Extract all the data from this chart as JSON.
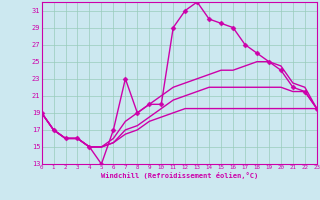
{
  "xlabel": "Windchill (Refroidissement éolien,°C)",
  "bg_color": "#cce8f0",
  "grid_color": "#99ccbb",
  "line_color": "#cc00aa",
  "spine_color": "#cc00aa",
  "xmin": 0,
  "xmax": 23,
  "ymin": 13,
  "ymax": 32,
  "yticks": [
    13,
    15,
    17,
    19,
    21,
    23,
    25,
    27,
    29,
    31
  ],
  "xticks": [
    0,
    1,
    2,
    3,
    4,
    5,
    6,
    7,
    8,
    9,
    10,
    11,
    12,
    13,
    14,
    15,
    16,
    17,
    18,
    19,
    20,
    21,
    22,
    23
  ],
  "series": [
    {
      "x": [
        0,
        1,
        2,
        3,
        4,
        5,
        6,
        7,
        8,
        9,
        10,
        11,
        12,
        13,
        14,
        15,
        16,
        17,
        18,
        19,
        20,
        21,
        22,
        23
      ],
      "y": [
        19,
        17,
        16,
        16,
        15,
        13,
        17,
        23,
        19,
        20,
        20,
        29,
        31,
        32,
        30,
        29.5,
        29,
        27,
        26,
        25,
        24,
        22,
        21.5,
        19.5
      ],
      "marker": "D",
      "markersize": 2.5,
      "linewidth": 1.0
    },
    {
      "x": [
        0,
        1,
        2,
        3,
        4,
        5,
        6,
        7,
        8,
        9,
        10,
        11,
        12,
        13,
        14,
        15,
        16,
        17,
        18,
        19,
        20,
        21,
        22,
        23
      ],
      "y": [
        19,
        17,
        16,
        16,
        15,
        15,
        16,
        18,
        19,
        20,
        21,
        22,
        22.5,
        23,
        23.5,
        24,
        24,
        24.5,
        25,
        25,
        24.5,
        22.5,
        22,
        19.5
      ],
      "marker": null,
      "markersize": 0,
      "linewidth": 1.0
    },
    {
      "x": [
        0,
        1,
        2,
        3,
        4,
        5,
        6,
        7,
        8,
        9,
        10,
        11,
        12,
        13,
        14,
        15,
        16,
        17,
        18,
        19,
        20,
        21,
        22,
        23
      ],
      "y": [
        19,
        17,
        16,
        16,
        15,
        15,
        15.5,
        17,
        17.5,
        18.5,
        19.5,
        20.5,
        21,
        21.5,
        22,
        22,
        22,
        22,
        22,
        22,
        22,
        21.5,
        21.5,
        19.5
      ],
      "marker": null,
      "markersize": 0,
      "linewidth": 1.0
    },
    {
      "x": [
        0,
        1,
        2,
        3,
        4,
        5,
        6,
        7,
        8,
        9,
        10,
        11,
        12,
        13,
        14,
        15,
        16,
        17,
        18,
        19,
        20,
        21,
        22,
        23
      ],
      "y": [
        19,
        17,
        16,
        16,
        15,
        15,
        15.5,
        16.5,
        17,
        18,
        18.5,
        19,
        19.5,
        19.5,
        19.5,
        19.5,
        19.5,
        19.5,
        19.5,
        19.5,
        19.5,
        19.5,
        19.5,
        19.5
      ],
      "marker": null,
      "markersize": 0,
      "linewidth": 1.0
    }
  ]
}
